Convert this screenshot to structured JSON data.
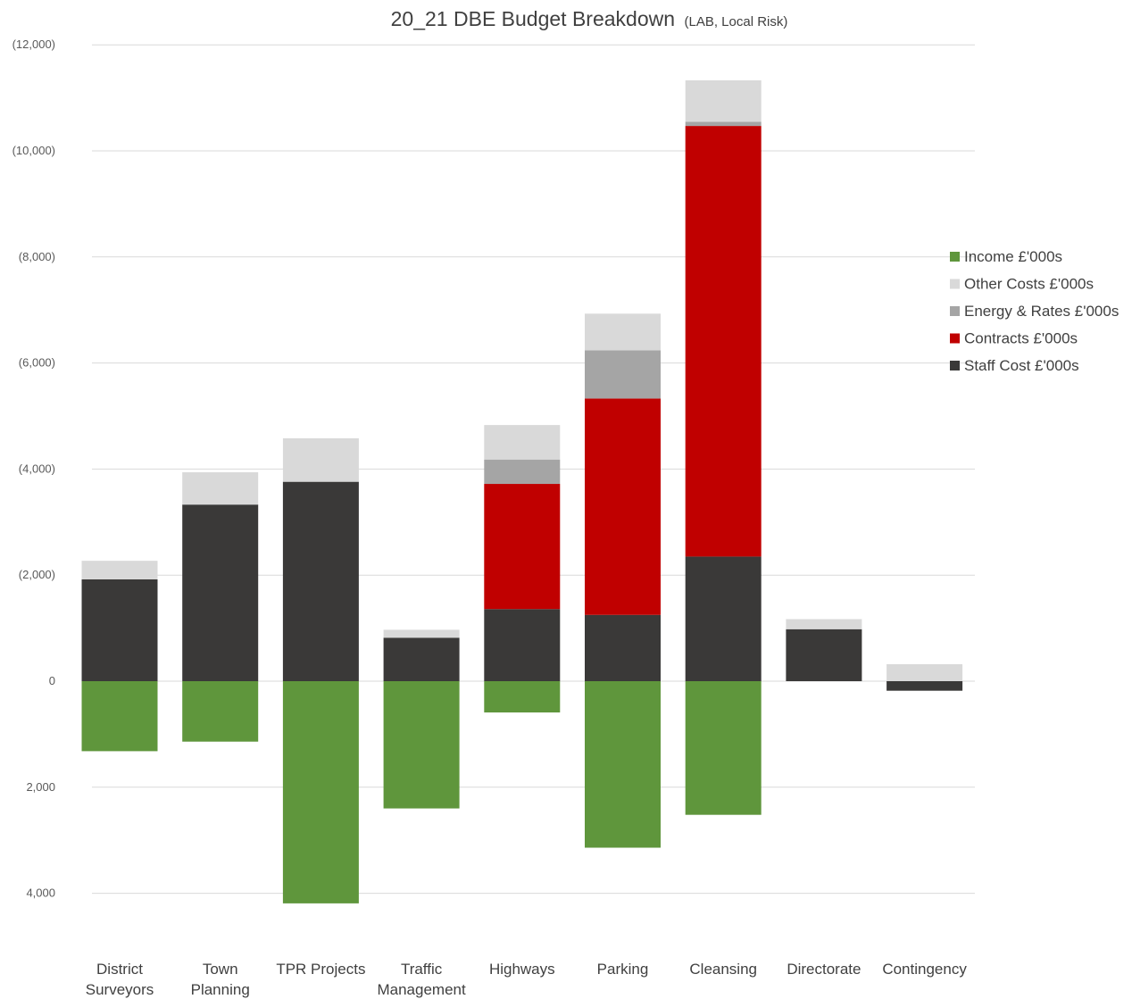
{
  "chart_data": {
    "type": "bar",
    "stacked": true,
    "title": "20_21 DBE Budget Breakdown",
    "subtitle": "(LAB, Local Risk)",
    "xlabel": "",
    "ylabel": "",
    "y_axis_reversed": true,
    "ylim": [
      -12000,
      5000
    ],
    "yticks": [
      -12000,
      -10000,
      -8000,
      -6000,
      -4000,
      -2000,
      0,
      2000,
      4000
    ],
    "ytick_labels": [
      "(12,000)",
      "(10,000)",
      "(8,000)",
      "(6,000)",
      "(4,000)",
      "(2,000)",
      "0",
      "2,000",
      "4,000"
    ],
    "grid": true,
    "legend_position": "right",
    "categories": [
      [
        "District",
        "Surveyors"
      ],
      [
        "Town",
        "Planning"
      ],
      [
        "TPR Projects"
      ],
      [
        "Traffic",
        "Management"
      ],
      [
        "Highways"
      ],
      [
        "Parking"
      ],
      [
        "Cleansing"
      ],
      [
        "Directorate"
      ],
      [
        "Contingency"
      ]
    ],
    "series": [
      {
        "name": "Staff Cost £'000s",
        "color": "#3a3938",
        "values": [
          -1920,
          -3330,
          -3760,
          -820,
          -1360,
          -1250,
          -2350,
          -980,
          180
        ]
      },
      {
        "name": "Contracts £'000s",
        "color": "#c00000",
        "values": [
          0,
          0,
          0,
          0,
          -2360,
          -4080,
          -8120,
          0,
          0
        ]
      },
      {
        "name": "Energy & Rates £'000s",
        "color": "#a5a5a5",
        "values": [
          0,
          0,
          0,
          0,
          -460,
          -910,
          -80,
          0,
          0
        ]
      },
      {
        "name": "Other Costs £'000s",
        "color": "#d9d9d9",
        "values": [
          -350,
          -610,
          -820,
          -150,
          -650,
          -690,
          -780,
          -190,
          -320
        ]
      },
      {
        "name": "Income £'000s",
        "color": "#5f963c",
        "values": [
          1320,
          1140,
          4190,
          2400,
          590,
          3140,
          2520,
          0,
          0
        ]
      }
    ],
    "legend_order": [
      "Income £'000s",
      "Other Costs £'000s",
      "Energy & Rates £'000s",
      "Contracts £'000s",
      "Staff Cost £'000s"
    ]
  }
}
